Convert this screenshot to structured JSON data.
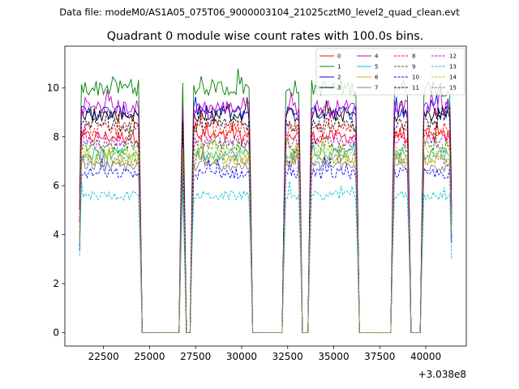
{
  "chart_data": {
    "type": "line",
    "suptitle": "Data file: modeM0/AS1A05_075T06_9000003104_21025cztM0_level2_quad_clean.evt",
    "title": "Quadrant 0 module wise count rates with 100.0s bins.",
    "xlabel": "",
    "ylabel": "",
    "x_offset_label": "+3.038e8",
    "xlim": [
      20400,
      42200
    ],
    "ylim": [
      -0.55,
      11.7
    ],
    "x_ticks": [
      22500,
      25000,
      27500,
      30000,
      32500,
      35000,
      37500,
      40000
    ],
    "x_tick_labels": [
      "22500",
      "25000",
      "27500",
      "30000",
      "32500",
      "35000",
      "37500",
      "40000"
    ],
    "y_ticks": [
      0,
      2,
      4,
      6,
      8,
      10
    ],
    "y_tick_labels": [
      "0",
      "2",
      "4",
      "6",
      "8",
      "10"
    ],
    "bin_seconds": 100,
    "x_start": 21200,
    "x_end": 41400,
    "active_segments": [
      [
        21200,
        24500
      ],
      [
        26700,
        26900
      ],
      [
        27300,
        30500
      ],
      [
        32300,
        33200
      ],
      [
        33700,
        36300
      ],
      [
        38200,
        39100
      ],
      [
        39800,
        41400
      ]
    ],
    "legend": {
      "placement": "top-right",
      "ncols": 4,
      "entries": [
        "0",
        "1",
        "2",
        "3",
        "4",
        "5",
        "6",
        "7",
        "8",
        "9",
        "10",
        "11",
        "12",
        "13",
        "14",
        "15"
      ]
    },
    "series": [
      {
        "name": "0",
        "color": "#ff0000",
        "dash": "solid",
        "mean_rate": 8.0
      },
      {
        "name": "1",
        "color": "#008000",
        "dash": "solid",
        "mean_rate": 10.0
      },
      {
        "name": "2",
        "color": "#0000ff",
        "dash": "solid",
        "mean_rate": 9.0
      },
      {
        "name": "3",
        "color": "#000000",
        "dash": "solid",
        "mean_rate": 8.9
      },
      {
        "name": "4",
        "color": "#bf00bf",
        "dash": "solid",
        "mean_rate": 9.2
      },
      {
        "name": "5",
        "color": "#00bfbf",
        "dash": "solid",
        "mean_rate": 7.3
      },
      {
        "name": "6",
        "color": "#bfbf00",
        "dash": "solid",
        "mean_rate": 7.1
      },
      {
        "name": "7",
        "color": "#808080",
        "dash": "solid",
        "mean_rate": 6.8
      },
      {
        "name": "8",
        "color": "#ff0000",
        "dash": "dashed",
        "mean_rate": 8.3
      },
      {
        "name": "9",
        "color": "#008000",
        "dash": "dashed",
        "mean_rate": 7.6
      },
      {
        "name": "10",
        "color": "#0000ff",
        "dash": "dashed",
        "mean_rate": 6.5
      },
      {
        "name": "11",
        "color": "#000000",
        "dash": "dashed",
        "mean_rate": 8.5
      },
      {
        "name": "12",
        "color": "#bf00bf",
        "dash": "dashed",
        "mean_rate": 7.8
      },
      {
        "name": "13",
        "color": "#00bfbf",
        "dash": "dashed",
        "mean_rate": 5.6
      },
      {
        "name": "14",
        "color": "#bfbf00",
        "dash": "dashed",
        "mean_rate": 7.4
      },
      {
        "name": "15",
        "color": "#808080",
        "dash": "dashed",
        "mean_rate": 7.0
      }
    ]
  }
}
